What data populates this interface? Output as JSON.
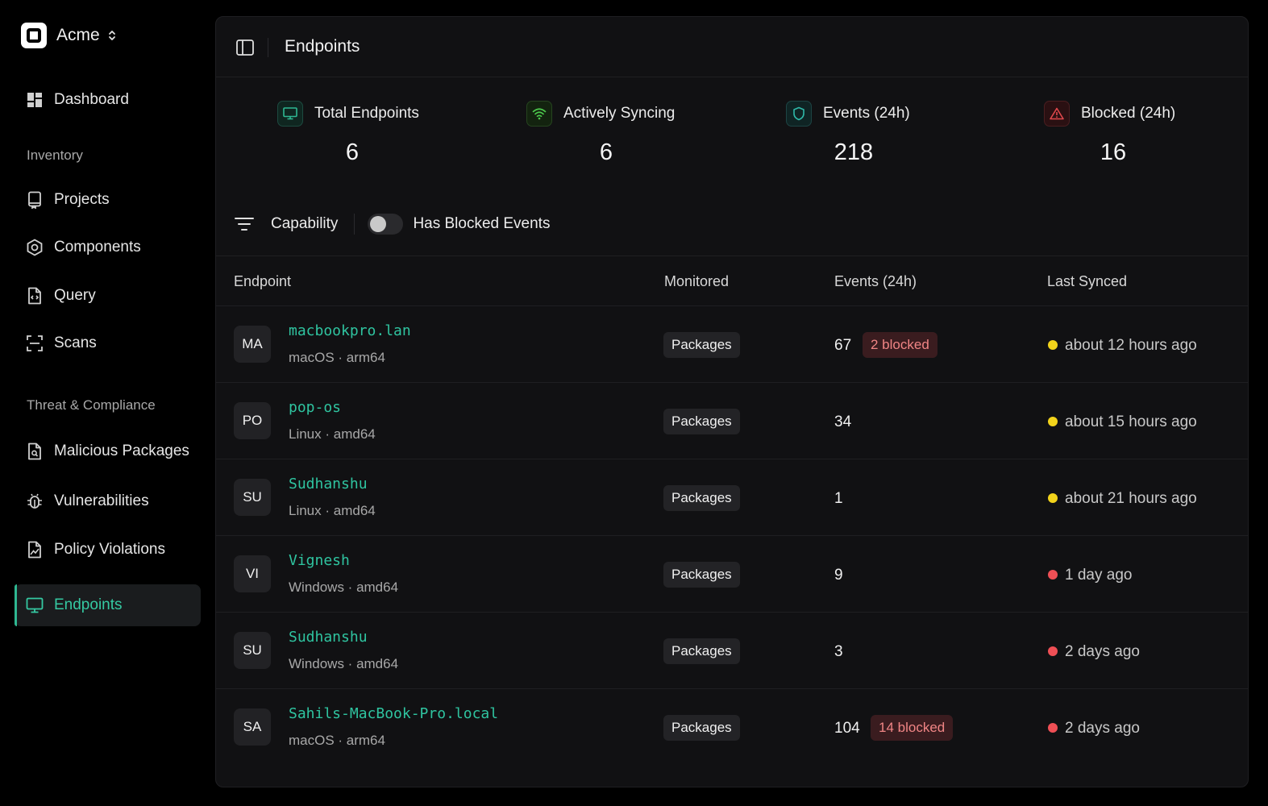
{
  "brand": {
    "name": "Acme"
  },
  "sidebar": {
    "dashboard": "Dashboard",
    "section_inventory": "Inventory",
    "projects": "Projects",
    "components": "Components",
    "query": "Query",
    "scans": "Scans",
    "section_threat": "Threat & Compliance",
    "malicious_packages": "Malicious Packages",
    "vulnerabilities": "Vulnerabilities",
    "policy_violations": "Policy Violations",
    "endpoints": "Endpoints",
    "active_item": "Endpoints"
  },
  "header": {
    "title": "Endpoints"
  },
  "stats": [
    {
      "label": "Total Endpoints",
      "value": "6",
      "icon": "monitor-icon",
      "color": "#2fb892"
    },
    {
      "label": "Actively Syncing",
      "value": "6",
      "icon": "wifi-icon",
      "color": "#4cc94c"
    },
    {
      "label": "Events (24h)",
      "value": "218",
      "icon": "shield-icon",
      "color": "#2fb8a8"
    },
    {
      "label": "Blocked (24h)",
      "value": "16",
      "icon": "alert-triangle-icon",
      "color": "#e0484c"
    }
  ],
  "filters": {
    "capability": "Capability",
    "has_blocked_events": "Has Blocked Events",
    "has_blocked_events_on": false
  },
  "table": {
    "columns": [
      "Endpoint",
      "Monitored",
      "Events (24h)",
      "Last Synced"
    ],
    "rows": [
      {
        "initials": "MA",
        "name": "macbookpro.lan",
        "meta": "macOS · arm64",
        "monitored": "Packages",
        "events": "67",
        "blocked": "2 blocked",
        "status": "yellow",
        "last_synced": "about 12 hours ago"
      },
      {
        "initials": "PO",
        "name": "pop-os",
        "meta": "Linux · amd64",
        "monitored": "Packages",
        "events": "34",
        "blocked": "",
        "status": "yellow",
        "last_synced": "about 15 hours ago"
      },
      {
        "initials": "SU",
        "name": "Sudhanshu",
        "meta": "Linux · amd64",
        "monitored": "Packages",
        "events": "1",
        "blocked": "",
        "status": "yellow",
        "last_synced": "about 21 hours ago"
      },
      {
        "initials": "VI",
        "name": "Vignesh",
        "meta": "Windows · amd64",
        "monitored": "Packages",
        "events": "9",
        "blocked": "",
        "status": "red",
        "last_synced": "1 day ago"
      },
      {
        "initials": "SU",
        "name": "Sudhanshu",
        "meta": "Windows · amd64",
        "monitored": "Packages",
        "events": "3",
        "blocked": "",
        "status": "red",
        "last_synced": "2 days ago"
      },
      {
        "initials": "SA",
        "name": "Sahils-MacBook-Pro.local",
        "meta": "macOS · arm64",
        "monitored": "Packages",
        "events": "104",
        "blocked": "14 blocked",
        "status": "red",
        "last_synced": "2 days ago"
      }
    ]
  },
  "colors": {
    "accent": "#2fc4a0",
    "status_yellow": "#f2d31b",
    "status_red": "#ef4f55",
    "blocked_bg": "#3a1c1f",
    "blocked_text": "#f08585"
  }
}
